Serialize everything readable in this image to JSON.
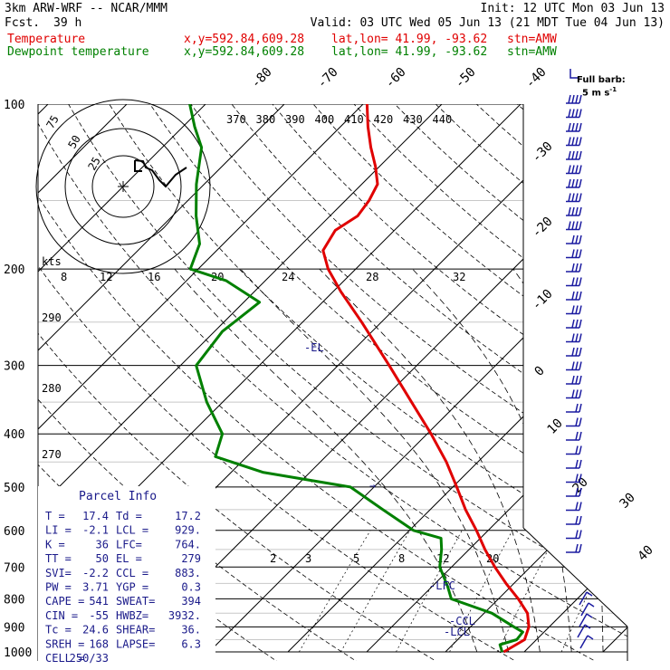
{
  "header": {
    "model": "3km ARW-WRF -- NCAR/MMM",
    "init": "Init: 12 UTC Mon 03 Jun 13",
    "fcst_label": "Fcst.",
    "fcst_value": "39 h",
    "valid": "Valid: 03 UTC Wed 05 Jun 13 (21 MDT Tue 04 Jun 13)",
    "temp_label": "Temperature",
    "dew_label": "Dewpoint temperature",
    "xy": "x,y=592.84,609.28",
    "latlon": "lat,lon= 41.99, -93.62",
    "stn": "stn=AMW"
  },
  "windbarb_legend": {
    "title": "Full barb:",
    "value": "5 m s",
    "superscript": "-1"
  },
  "hodograph": {
    "unit_label": "kts",
    "ring_labels": [
      "75",
      "50",
      "25"
    ]
  },
  "parcel_info": {
    "title": "Parcel Info",
    "rows": [
      [
        "T  =",
        "17.4",
        "Td =",
        "17.2"
      ],
      [
        "LI =",
        "-2.1",
        "LCL =",
        "929."
      ],
      [
        "K  =",
        "36",
        "LFC=",
        "764."
      ],
      [
        "TT =",
        "50",
        "EL =",
        "279"
      ],
      [
        "SVI=",
        "-2.2",
        "CCL =",
        "883."
      ],
      [
        "PW =",
        "3.71",
        "YGP =",
        "0.3"
      ],
      [
        "CAPE =",
        "541",
        "SWEAT=",
        "394"
      ],
      [
        "CIN =",
        "-55",
        "HWBZ=",
        "3932."
      ],
      [
        "Tc =",
        "24.6",
        "SHEAR=",
        "36."
      ],
      [
        "SREH =",
        "168",
        "LAPSE=",
        "6.3"
      ],
      [
        "CELL =",
        "250/33",
        "",
        ""
      ]
    ]
  },
  "level_markers": {
    "el": "-EL",
    "lfc": "-LFC",
    "ccl": "-CCL",
    "lcl": "-LCL"
  },
  "colors": {
    "temperature": "#e00000",
    "dewpoint": "#008000",
    "barbs": "#1a1aa0",
    "annotations": "#1a1a8a"
  },
  "chart_data": {
    "type": "line",
    "subtype": "skew-T log-p diagram",
    "y_axis": {
      "scale": "log",
      "unit": "hPa",
      "range": [
        1000,
        100
      ],
      "ticks": [
        1000,
        900,
        800,
        700,
        600,
        500,
        400,
        300,
        200,
        100
      ]
    },
    "isotherm_labels": [
      "-80",
      "-70",
      "-60",
      "-50",
      "-40",
      "-30",
      "-20",
      "-10",
      "0",
      "10",
      "20",
      "30",
      "40"
    ],
    "theta_labels_top": [
      "370",
      "380",
      "390",
      "400",
      "410",
      "420",
      "430",
      "440"
    ],
    "theta_labels_left": [
      "290",
      "280",
      "270"
    ],
    "mixing_ratio_labels": [
      "2",
      "3",
      "5",
      "8",
      "12",
      "20"
    ],
    "hodograph_speed_labels": [
      "8",
      "12",
      "16",
      "20",
      "24",
      "28",
      "32"
    ],
    "series": [
      {
        "name": "Temperature",
        "color": "#e00000",
        "points": [
          [
            1000,
            17.4
          ],
          [
            950,
            18.5
          ],
          [
            900,
            17.4
          ],
          [
            850,
            15.5
          ],
          [
            800,
            12.5
          ],
          [
            750,
            9.0
          ],
          [
            700,
            5.5
          ],
          [
            650,
            2.0
          ],
          [
            600,
            -1.5
          ],
          [
            550,
            -5.5
          ],
          [
            500,
            -9.5
          ],
          [
            450,
            -14.0
          ],
          [
            400,
            -19.5
          ],
          [
            350,
            -26.0
          ],
          [
            300,
            -33.5
          ],
          [
            250,
            -42.5
          ],
          [
            220,
            -49.0
          ],
          [
            200,
            -53.5
          ],
          [
            185,
            -56.5
          ],
          [
            170,
            -57.5
          ],
          [
            160,
            -56.5
          ],
          [
            150,
            -57.0
          ],
          [
            140,
            -58.0
          ],
          [
            130,
            -60.5
          ],
          [
            120,
            -63.5
          ],
          [
            110,
            -66.5
          ],
          [
            100,
            -69.5
          ]
        ]
      },
      {
        "name": "Dewpoint temperature",
        "color": "#008000",
        "points": [
          [
            1000,
            17.2
          ],
          [
            970,
            16.0
          ],
          [
            950,
            17.5
          ],
          [
            920,
            17.3
          ],
          [
            900,
            15.5
          ],
          [
            850,
            11.0
          ],
          [
            800,
            4.0
          ],
          [
            760,
            2.0
          ],
          [
            700,
            -1.5
          ],
          [
            650,
            -3.5
          ],
          [
            620,
            -5.0
          ],
          [
            600,
            -9.5
          ],
          [
            550,
            -16.0
          ],
          [
            500,
            -23.0
          ],
          [
            470,
            -36.0
          ],
          [
            440,
            -44.0
          ],
          [
            400,
            -46.0
          ],
          [
            350,
            -52.0
          ],
          [
            300,
            -58.0
          ],
          [
            260,
            -59.0
          ],
          [
            230,
            -58.0
          ],
          [
            210,
            -65.0
          ],
          [
            200,
            -71.0
          ],
          [
            180,
            -73.0
          ],
          [
            160,
            -77.0
          ],
          [
            140,
            -81.0
          ],
          [
            120,
            -85.0
          ],
          [
            110,
            -88.5
          ],
          [
            100,
            -92.0
          ]
        ]
      }
    ]
  }
}
